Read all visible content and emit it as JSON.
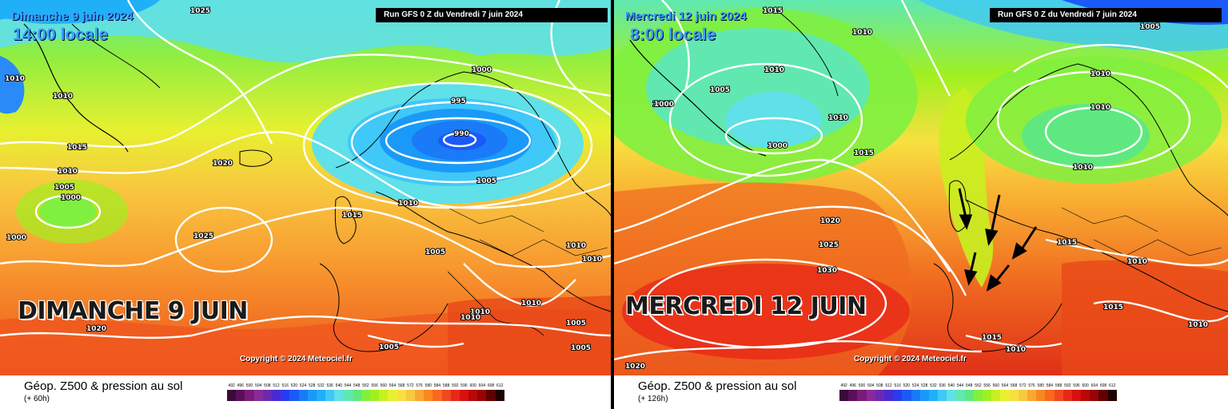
{
  "panels": [
    {
      "date_title": "Dimanche 9 juin 2024",
      "time_title": "14:00 locale",
      "run_title": "Run GFS 0 Z du Vendredi 7 juin 2024",
      "day_label": "DIMANCHE 9 JUIN",
      "copyright": "Copyright © 2024 Meteociel.fr",
      "legend_title": "Géop. Z500 & pression au sol",
      "legend_sub": "(+ 60h)",
      "isobar_labels": [
        "1025",
        "1010",
        "1010",
        "1015",
        "1010",
        "1005",
        "1000",
        "1000",
        "1020",
        "1025",
        "1000",
        "995",
        "990",
        "1005",
        "1010",
        "1015",
        "1005",
        "1010",
        "1010",
        "1010",
        "1010",
        "1010",
        "1005",
        "1005",
        "1005",
        "1020"
      ]
    },
    {
      "date_title": "Mercredi 12 juin 2024",
      "time_title": "8:00 locale",
      "run_title": "Run GFS 0 Z du Vendredi 7 juin 2024",
      "day_label": "MERCREDI 12 JUIN",
      "copyright": "Copyright © 2024 Meteociel.fr",
      "legend_title": "Géop. Z500 & pression au sol",
      "legend_sub": "(+ 126h)",
      "isobar_labels": [
        "1015",
        "1010",
        "1005",
        "1010",
        "1005",
        "1000",
        "1000",
        "1010",
        "1015",
        "1020",
        "1025",
        "1030",
        "1010",
        "1010",
        "1010",
        "1015",
        "1010",
        "1015",
        "1010",
        "1010",
        "1015",
        "1005",
        "1020"
      ]
    }
  ],
  "scale": {
    "labels": [
      "492",
      "496",
      "500",
      "504",
      "508",
      "512",
      "516",
      "520",
      "524",
      "528",
      "532",
      "536",
      "540",
      "544",
      "548",
      "552",
      "556",
      "560",
      "564",
      "568",
      "572",
      "576",
      "580",
      "584",
      "588",
      "592",
      "596",
      "600",
      "604",
      "608",
      "612"
    ],
    "colors": [
      "#3b0a3b",
      "#5a0f5a",
      "#7a1a7a",
      "#8a2a9a",
      "#6a2ab0",
      "#4a2ad0",
      "#2a3af0",
      "#1a5af8",
      "#1a7af8",
      "#1a9af8",
      "#20b0f8",
      "#40c8f8",
      "#60e0e8",
      "#60e8b0",
      "#60e880",
      "#80f040",
      "#a0f020",
      "#c8f020",
      "#e8f030",
      "#f8e040",
      "#f8c840",
      "#f8a830",
      "#f88820",
      "#f86820",
      "#f04820",
      "#e82818",
      "#d81010",
      "#b80808",
      "#980404",
      "#600000",
      "#200000"
    ]
  },
  "colors": {
    "title_blue": "#3aa0ff",
    "isobar": "#ffffff",
    "coast": "#000000"
  }
}
